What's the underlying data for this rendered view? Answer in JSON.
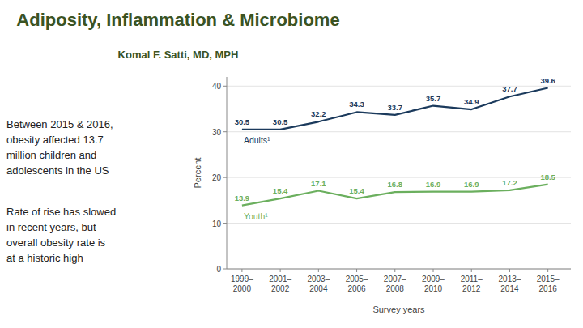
{
  "chart_data": {
    "type": "line",
    "title": "Adiposity, Inflammation & Microbiome",
    "subtitle": "Komal F. Satti, MD, MPH",
    "annotations": [
      "Between 2015 & 2016,\nobesity affected 13.7\nmillion children and\nadolescents in the US",
      "Rate of rise has slowed\nin recent years, but\noverall obesity rate is\nat a historic high"
    ],
    "categories": [
      "1999–2000",
      "2001–2002",
      "2003–2004",
      "2005–2006",
      "2007–2008",
      "2009–2010",
      "2011–2012",
      "2013–2014",
      "2015–2016"
    ],
    "series": [
      {
        "name": "Adults¹",
        "color": "#1B3A5C",
        "values": [
          30.5,
          30.5,
          32.2,
          34.3,
          33.7,
          35.7,
          34.9,
          37.7,
          39.6
        ]
      },
      {
        "name": "Youth¹",
        "color": "#6BAF5E",
        "values": [
          13.9,
          15.4,
          17.1,
          15.4,
          16.8,
          16.9,
          16.9,
          17.2,
          18.5
        ]
      }
    ],
    "xlabel": "Survey years",
    "ylabel": "Percent",
    "ylim": [
      0,
      42
    ],
    "yticks": [
      0,
      10,
      20,
      30,
      40
    ],
    "grid": true,
    "data_labels": true
  }
}
